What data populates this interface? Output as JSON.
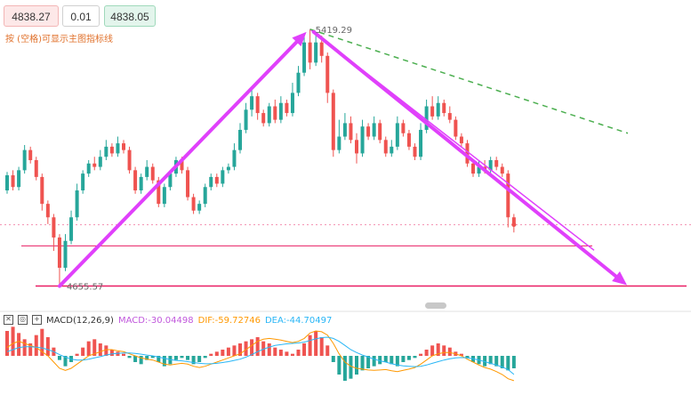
{
  "toolbar": {
    "bid": "4838.27",
    "step": "0.01",
    "ask": "4838.05",
    "hint": "按 (空格)可显示主图指标线"
  },
  "annotations": {
    "high_label": "5419.29",
    "low_label": "4655.57"
  },
  "macd": {
    "close_label": "✕",
    "eye_label": "◎",
    "add_label": "+",
    "title": "MACD(12,26,9)",
    "macd_label": "MACD:-30.04498",
    "dif_label": "DIF:-59.72746",
    "dea_label": "DEA:-44.70497"
  },
  "colors": {
    "up": "#26a69a",
    "down": "#ef5350",
    "arrow": "#e040fb",
    "trendline": "#e040fb",
    "dashed": "#4caf50",
    "support": "#e91e63",
    "dif": "#ff9800",
    "dea": "#29b6f6"
  },
  "chart_data": {
    "type": "candlestick",
    "price_range": [
      4620,
      5440
    ],
    "high": 5419.29,
    "low": 4655.57,
    "current": 4838.05,
    "support_levels": [
      4775,
      4655.57
    ],
    "candles": [
      [
        4940,
        4985,
        4930,
        4995
      ],
      [
        4985,
        4950,
        4940,
        5000
      ],
      [
        4950,
        5000,
        4940,
        5010
      ],
      [
        5000,
        5060,
        4990,
        5075
      ],
      [
        5060,
        5030,
        5020,
        5070
      ],
      [
        5030,
        4980,
        4970,
        5040
      ],
      [
        4980,
        4900,
        4880,
        4990
      ],
      [
        4900,
        4860,
        4840,
        4910
      ],
      [
        4860,
        4800,
        4760,
        4870
      ],
      [
        4800,
        4710,
        4655.57,
        4810
      ],
      [
        4710,
        4790,
        4700,
        4810
      ],
      [
        4790,
        4860,
        4780,
        4880
      ],
      [
        4860,
        4940,
        4850,
        4960
      ],
      [
        4940,
        4990,
        4930,
        5000
      ],
      [
        4990,
        5020,
        4980,
        5030
      ],
      [
        5020,
        5010,
        5000,
        5040
      ],
      [
        5010,
        5040,
        5000,
        5060
      ],
      [
        5040,
        5070,
        5030,
        5090
      ],
      [
        5070,
        5050,
        5040,
        5080
      ],
      [
        5050,
        5080,
        5040,
        5100
      ],
      [
        5080,
        5060,
        5050,
        5090
      ],
      [
        5060,
        5000,
        4990,
        5070
      ],
      [
        5000,
        4940,
        4930,
        5010
      ],
      [
        4940,
        4980,
        4930,
        4990
      ],
      [
        4980,
        5010,
        4970,
        5030
      ],
      [
        5010,
        4970,
        4960,
        5020
      ],
      [
        4970,
        4900,
        4890,
        4980
      ],
      [
        4900,
        4950,
        4890,
        4960
      ],
      [
        4950,
        4990,
        4940,
        5000
      ],
      [
        4990,
        5030,
        4980,
        5040
      ],
      [
        5030,
        5000,
        4990,
        5040
      ],
      [
        5000,
        4920,
        4910,
        5010
      ],
      [
        4920,
        4880,
        4870,
        4930
      ],
      [
        4880,
        4900,
        4870,
        4910
      ],
      [
        4900,
        4950,
        4890,
        4960
      ],
      [
        4950,
        4980,
        4940,
        4990
      ],
      [
        4980,
        4960,
        4950,
        4990
      ],
      [
        4960,
        5000,
        4950,
        5010
      ],
      [
        5000,
        5010,
        4990,
        5020
      ],
      [
        5010,
        5060,
        5000,
        5080
      ],
      [
        5060,
        5120,
        5050,
        5140
      ],
      [
        5120,
        5180,
        5110,
        5200
      ],
      [
        5180,
        5220,
        5160,
        5240
      ],
      [
        5220,
        5170,
        5150,
        5230
      ],
      [
        5170,
        5140,
        5130,
        5180
      ],
      [
        5140,
        5190,
        5130,
        5200
      ],
      [
        5190,
        5150,
        5140,
        5210
      ],
      [
        5150,
        5200,
        5140,
        5220
      ],
      [
        5200,
        5170,
        5160,
        5210
      ],
      [
        5170,
        5230,
        5160,
        5260
      ],
      [
        5230,
        5290,
        5220,
        5310
      ],
      [
        5290,
        5380,
        5280,
        5400
      ],
      [
        5380,
        5320,
        5300,
        5419.29
      ],
      [
        5320,
        5380,
        5310,
        5400
      ],
      [
        5380,
        5340,
        5320,
        5400
      ],
      [
        5340,
        5230,
        5200,
        5350
      ],
      [
        5230,
        5060,
        5040,
        5240
      ],
      [
        5060,
        5100,
        5050,
        5150
      ],
      [
        5100,
        5140,
        5090,
        5170
      ],
      [
        5140,
        5090,
        5080,
        5160
      ],
      [
        5090,
        5050,
        5020,
        5110
      ],
      [
        5050,
        5130,
        5040,
        5150
      ],
      [
        5130,
        5100,
        5090,
        5140
      ],
      [
        5100,
        5140,
        5090,
        5160
      ],
      [
        5140,
        5090,
        5080,
        5150
      ],
      [
        5090,
        5050,
        5040,
        5100
      ],
      [
        5050,
        5070,
        5040,
        5090
      ],
      [
        5070,
        5140,
        5060,
        5160
      ],
      [
        5140,
        5110,
        5100,
        5150
      ],
      [
        5110,
        5070,
        5060,
        5120
      ],
      [
        5070,
        5040,
        5030,
        5080
      ],
      [
        5040,
        5120,
        5030,
        5140
      ],
      [
        5120,
        5190,
        5110,
        5210
      ],
      [
        5190,
        5160,
        5150,
        5220
      ],
      [
        5160,
        5200,
        5150,
        5220
      ],
      [
        5200,
        5170,
        5160,
        5210
      ],
      [
        5170,
        5150,
        5140,
        5190
      ],
      [
        5150,
        5100,
        5090,
        5160
      ],
      [
        5100,
        5080,
        5070,
        5110
      ],
      [
        5080,
        5020,
        5010,
        5090
      ],
      [
        5020,
        4990,
        4980,
        5030
      ],
      [
        4990,
        5010,
        4980,
        5030
      ],
      [
        5010,
        5000,
        4990,
        5030
      ],
      [
        5000,
        5030,
        4990,
        5040
      ],
      [
        5030,
        5010,
        5000,
        5040
      ],
      [
        5010,
        4990,
        4980,
        5020
      ],
      [
        4990,
        4860,
        4830,
        5000
      ],
      [
        4860,
        4838.05,
        4815,
        4870
      ]
    ],
    "macd_hist": [
      60,
      70,
      55,
      40,
      30,
      50,
      65,
      45,
      20,
      -10,
      -25,
      -15,
      5,
      20,
      35,
      40,
      30,
      25,
      15,
      10,
      5,
      -5,
      -15,
      -20,
      -10,
      -5,
      -15,
      -25,
      -20,
      -10,
      -5,
      -10,
      -20,
      -15,
      -5,
      5,
      10,
      15,
      20,
      25,
      30,
      35,
      40,
      45,
      35,
      30,
      20,
      15,
      10,
      5,
      15,
      30,
      50,
      60,
      45,
      25,
      -15,
      -45,
      -60,
      -55,
      -45,
      -35,
      -30,
      -25,
      -20,
      -15,
      -20,
      -25,
      -15,
      -10,
      -5,
      5,
      15,
      25,
      30,
      25,
      20,
      10,
      5,
      -5,
      -15,
      -20,
      -25,
      -20,
      -25,
      -30,
      -35,
      -30
    ],
    "dif": [
      20,
      30,
      35,
      30,
      25,
      20,
      10,
      0,
      -15,
      -30,
      -35,
      -30,
      -20,
      -10,
      0,
      5,
      10,
      15,
      15,
      12,
      10,
      5,
      0,
      -5,
      -8,
      -10,
      -15,
      -20,
      -22,
      -20,
      -18,
      -20,
      -25,
      -28,
      -25,
      -20,
      -15,
      -10,
      -5,
      0,
      5,
      15,
      25,
      35,
      40,
      42,
      40,
      38,
      35,
      32,
      35,
      42,
      55,
      60,
      58,
      50,
      30,
      5,
      -15,
      -25,
      -30,
      -32,
      -34,
      -35,
      -34,
      -33,
      -36,
      -38,
      -35,
      -32,
      -28,
      -20,
      -10,
      0,
      5,
      8,
      8,
      5,
      0,
      -8,
      -15,
      -22,
      -28,
      -32,
      -38,
      -45,
      -55,
      -59.73
    ],
    "dea": [
      10,
      15,
      20,
      22,
      22,
      21,
      19,
      15,
      10,
      3,
      -3,
      -8,
      -10,
      -10,
      -8,
      -5,
      -2,
      2,
      5,
      6,
      7,
      7,
      6,
      4,
      2,
      0,
      -3,
      -6,
      -9,
      -11,
      -12,
      -14,
      -16,
      -18,
      -19,
      -19,
      -18,
      -16,
      -14,
      -11,
      -8,
      -3,
      3,
      10,
      16,
      21,
      25,
      27,
      29,
      30,
      31,
      33,
      37,
      41,
      44,
      45,
      42,
      35,
      25,
      15,
      8,
      2,
      -3,
      -8,
      -12,
      -15,
      -19,
      -22,
      -24,
      -25,
      -26,
      -25,
      -22,
      -18,
      -14,
      -10,
      -7,
      -5,
      -4,
      -5,
      -7,
      -10,
      -14,
      -18,
      -22,
      -27,
      -33,
      -44.7
    ]
  }
}
